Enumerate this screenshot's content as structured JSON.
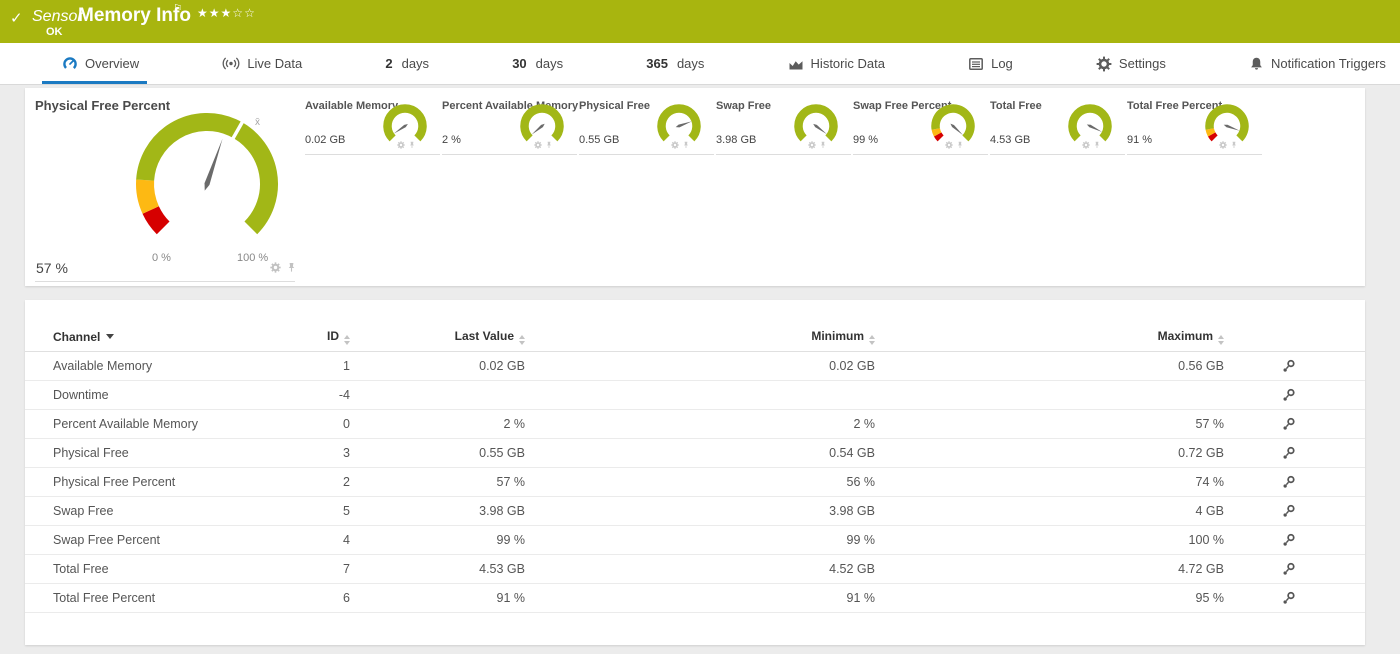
{
  "colors": {
    "brand_green": "#a8b50f",
    "accent_blue": "#1b7ac2",
    "ok": "#a2b717",
    "warning": "#fdb913",
    "error": "#d60000",
    "needle": "#6b6b6b"
  },
  "header": {
    "status_check": "✓",
    "type_label": "Sensor",
    "name": "Memory Info",
    "flag": "⚐",
    "stars": {
      "filled": 3,
      "total": 5
    },
    "status": "OK"
  },
  "tabs": [
    {
      "label": "Overview",
      "icon": "gauge-icon",
      "active": true
    },
    {
      "label": "Live Data",
      "icon": "broadcast-icon"
    },
    {
      "prefix": "2",
      "label": "days"
    },
    {
      "prefix": "30",
      "label": "days"
    },
    {
      "prefix": "365",
      "label": "days"
    },
    {
      "label": "Historic Data",
      "icon": "area-chart-icon"
    },
    {
      "label": "Log",
      "icon": "log-icon"
    },
    {
      "label": "Settings",
      "icon": "gear-icon"
    },
    {
      "label": "Notification Triggers",
      "icon": "bell-icon"
    }
  ],
  "gauges": {
    "main": {
      "title": "Physical Free Percent",
      "value_label": "57 %",
      "percent": 57,
      "scale_min_label": "0 %",
      "scale_max_label": "100 %",
      "avg_percent": 61,
      "avg_label": "x̄",
      "segments": [
        {
          "from": 0,
          "to": 7.5,
          "color": "error"
        },
        {
          "from": 7.5,
          "to": 18,
          "color": "warning"
        },
        {
          "from": 18,
          "to": 100,
          "color": "ok"
        }
      ]
    },
    "small": [
      {
        "title": "Available Memory",
        "value_label": "0.02 GB",
        "percent": 4,
        "segments": [
          {
            "from": 0,
            "to": 100,
            "color": "ok"
          }
        ]
      },
      {
        "title": "Percent Available Memory",
        "value_label": "2 %",
        "percent": 2,
        "segments": [
          {
            "from": 0,
            "to": 100,
            "color": "ok"
          }
        ]
      },
      {
        "title": "Physical Free",
        "value_label": "0.55 GB",
        "percent": 76,
        "segments": [
          {
            "from": 0,
            "to": 100,
            "color": "ok"
          }
        ]
      },
      {
        "title": "Swap Free",
        "value_label": "3.98 GB",
        "percent": 97,
        "segments": [
          {
            "from": 0,
            "to": 100,
            "color": "ok"
          }
        ]
      },
      {
        "title": "Swap Free Percent",
        "value_label": "99 %",
        "percent": 99,
        "segments": [
          {
            "from": 0,
            "to": 6,
            "color": "error"
          },
          {
            "from": 6,
            "to": 13,
            "color": "warning"
          },
          {
            "from": 13,
            "to": 100,
            "color": "ok"
          }
        ]
      },
      {
        "title": "Total Free",
        "value_label": "4.53 GB",
        "percent": 93,
        "segments": [
          {
            "from": 0,
            "to": 100,
            "color": "ok"
          }
        ]
      },
      {
        "title": "Total Free Percent",
        "value_label": "91 %",
        "percent": 91,
        "segments": [
          {
            "from": 0,
            "to": 6,
            "color": "error"
          },
          {
            "from": 6,
            "to": 13,
            "color": "warning"
          },
          {
            "from": 13,
            "to": 100,
            "color": "ok"
          }
        ]
      }
    ]
  },
  "table": {
    "columns": [
      {
        "label": "Channel",
        "sort": "active-desc"
      },
      {
        "label": "ID",
        "sort": "both"
      },
      {
        "label": "Last Value",
        "sort": "both"
      },
      {
        "label": "Minimum",
        "sort": "both"
      },
      {
        "label": "Maximum",
        "sort": "both"
      }
    ],
    "rows": [
      {
        "channel": "Available Memory",
        "id": "1",
        "last": "0.02 GB",
        "min": "0.02 GB",
        "max": "0.56 GB"
      },
      {
        "channel": "Downtime",
        "id": "-4",
        "last": "",
        "min": "",
        "max": ""
      },
      {
        "channel": "Percent Available Memory",
        "id": "0",
        "last": "2 %",
        "min": "2 %",
        "max": "57 %"
      },
      {
        "channel": "Physical Free",
        "id": "3",
        "last": "0.55 GB",
        "min": "0.54 GB",
        "max": "0.72 GB"
      },
      {
        "channel": "Physical Free Percent",
        "id": "2",
        "last": "57 %",
        "min": "56 %",
        "max": "74 %"
      },
      {
        "channel": "Swap Free",
        "id": "5",
        "last": "3.98 GB",
        "min": "3.98 GB",
        "max": "4 GB"
      },
      {
        "channel": "Swap Free Percent",
        "id": "4",
        "last": "99 %",
        "min": "99 %",
        "max": "100 %"
      },
      {
        "channel": "Total Free",
        "id": "7",
        "last": "4.53 GB",
        "min": "4.52 GB",
        "max": "4.72 GB"
      },
      {
        "channel": "Total Free Percent",
        "id": "6",
        "last": "91 %",
        "min": "91 %",
        "max": "95 %"
      }
    ]
  }
}
